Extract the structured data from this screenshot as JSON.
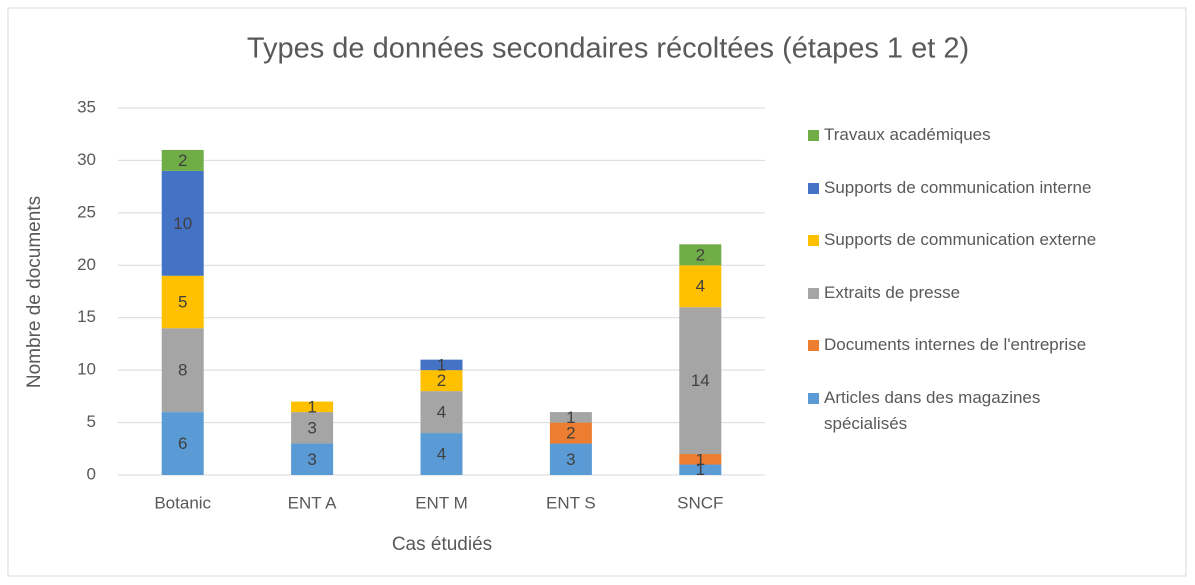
{
  "chart_data": {
    "type": "bar",
    "stacked": true,
    "title": "Types de données secondaires récoltées (étapes 1 et 2)",
    "x_label": "Cas étudiés",
    "y_label": "Nombre de documents",
    "categories": [
      "Botanic",
      "ENT A",
      "ENT M",
      "ENT S",
      "SNCF"
    ],
    "series": [
      {
        "name": "Articles dans des magazines spécialisés",
        "color": "#5b9bd5",
        "values": [
          6,
          3,
          4,
          3,
          1
        ]
      },
      {
        "name": "Documents internes de l'entreprise",
        "color": "#ed7d31",
        "values": [
          null,
          null,
          null,
          2,
          1
        ]
      },
      {
        "name": "Extraits de presse",
        "color": "#a5a5a5",
        "values": [
          8,
          3,
          4,
          1,
          14
        ]
      },
      {
        "name": "Supports de communication externe",
        "color": "#ffc000",
        "values": [
          5,
          1,
          2,
          null,
          4
        ]
      },
      {
        "name": "Supports de communication interne",
        "color": "#4472c4",
        "values": [
          10,
          null,
          1,
          null,
          null
        ]
      },
      {
        "name": "Travaux académiques",
        "color": "#70ad47",
        "values": [
          2,
          null,
          null,
          null,
          2
        ]
      }
    ],
    "ylim": [
      0,
      35
    ],
    "yticks": [
      0,
      5,
      10,
      15,
      20,
      25,
      30,
      35
    ],
    "grid": true,
    "legend": "right"
  }
}
